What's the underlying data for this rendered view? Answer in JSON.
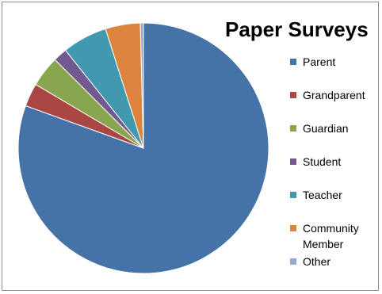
{
  "chart_data": {
    "type": "pie",
    "title": "Paper Surveys",
    "legend_position": "right",
    "slices": [
      {
        "label": "Parent",
        "value": 80.5,
        "color": "#4572A7"
      },
      {
        "label": "Grandparent",
        "value": 3.0,
        "color": "#AA4643"
      },
      {
        "label": "Guardian",
        "value": 4.0,
        "color": "#89A54E"
      },
      {
        "label": "Student",
        "value": 1.8,
        "color": "#71588F"
      },
      {
        "label": "Teacher",
        "value": 5.8,
        "color": "#4198AF"
      },
      {
        "label": "Community Member",
        "value": 4.5,
        "color": "#DB843D"
      },
      {
        "label": "Other",
        "value": 0.4,
        "color": "#93A9CF"
      }
    ]
  }
}
